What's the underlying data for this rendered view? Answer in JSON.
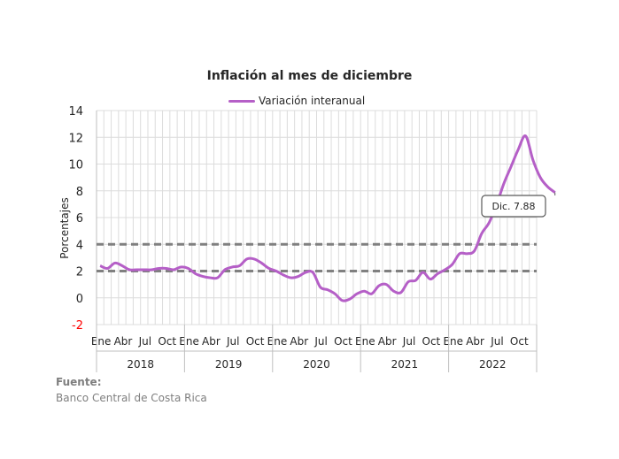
{
  "chart_data": {
    "type": "line",
    "title": "Inflación al mes de diciembre",
    "ylabel": "Porcentajes",
    "xlabel": "",
    "ylim": [
      -2,
      14
    ],
    "yticks": [
      -2,
      0,
      2,
      4,
      6,
      8,
      10,
      12,
      14
    ],
    "grid": true,
    "legend_placement": "top-center",
    "month_tick_labels": [
      "Ene",
      "Abr",
      "Jul",
      "Oct"
    ],
    "years": [
      "2018",
      "2019",
      "2020",
      "2021",
      "2022"
    ],
    "series": [
      {
        "name": "Variación interanual",
        "color": "#b55fc7",
        "values": [
          2.4,
          2.2,
          2.6,
          2.4,
          2.1,
          2.1,
          2.1,
          2.1,
          2.2,
          2.2,
          2.1,
          2.3,
          2.2,
          1.8,
          1.6,
          1.5,
          1.5,
          2.1,
          2.3,
          2.4,
          2.9,
          2.9,
          2.6,
          2.2,
          2.0,
          1.7,
          1.5,
          1.6,
          1.9,
          1.9,
          0.8,
          0.6,
          0.3,
          -0.2,
          -0.1,
          0.3,
          0.5,
          0.3,
          0.9,
          1.0,
          0.5,
          0.4,
          1.2,
          1.3,
          1.9,
          1.4,
          1.8,
          2.1,
          2.5,
          3.3,
          3.3,
          3.5,
          4.8,
          5.6,
          6.9,
          8.5,
          9.8,
          11.1,
          12.1,
          10.3,
          9.0,
          8.3,
          7.88
        ]
      }
    ],
    "reference_lines": [
      2,
      4
    ],
    "annotation": "Dic. 7.88"
  },
  "source": {
    "heading": "Fuente:",
    "text": "Banco Central de Costa Rica"
  }
}
